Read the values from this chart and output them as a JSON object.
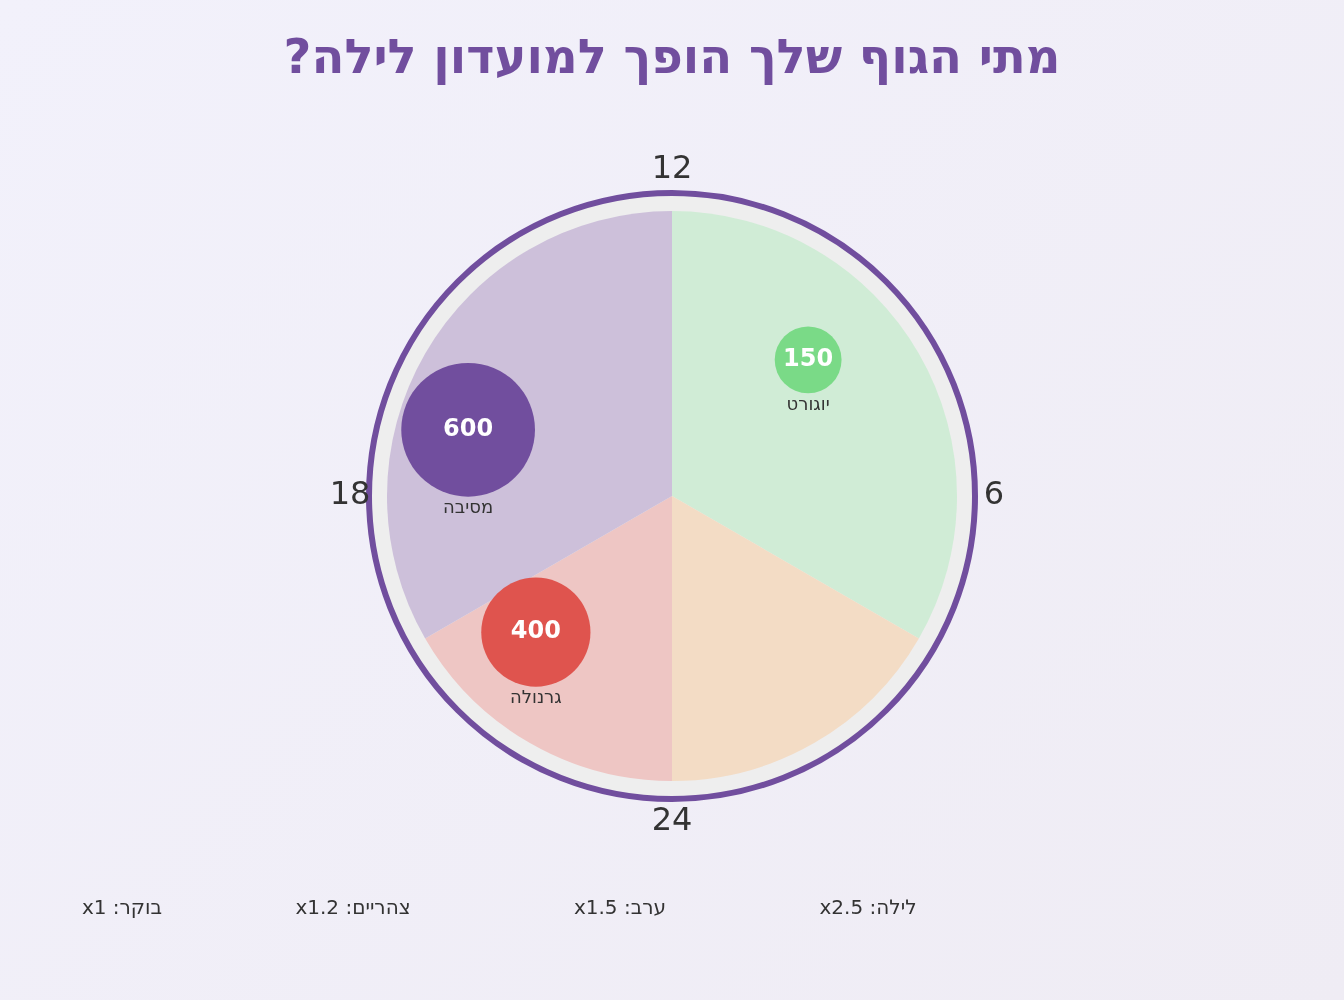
{
  "chart_data": [
    {
      "type": "pie",
      "title": "מתי הגוף שלך הופך למועדון לילה?",
      "categories": [
        null,
        null,
        null,
        null
      ],
      "values": [
        33.33,
        16.67,
        16.67,
        33.33
      ],
      "colors": [
        "#d0ecd6",
        "#f3dcc5",
        "#eec6c4",
        "#cdc0da"
      ],
      "annotations": [
        "12",
        "6",
        "24",
        "18",
        "לילה: x2.5",
        "ערב: x1.5",
        "צהריים: x1.2",
        "בוקר: x1"
      ]
    },
    {
      "type": "other",
      "categories": [
        "יוגורט",
        "גרנולה",
        "מסיבה"
      ],
      "values": [
        150,
        400,
        600
      ],
      "data_labels": true,
      "colors": [
        "#7ada87",
        "#df544e",
        "#714e9e"
      ]
    }
  ]
}
